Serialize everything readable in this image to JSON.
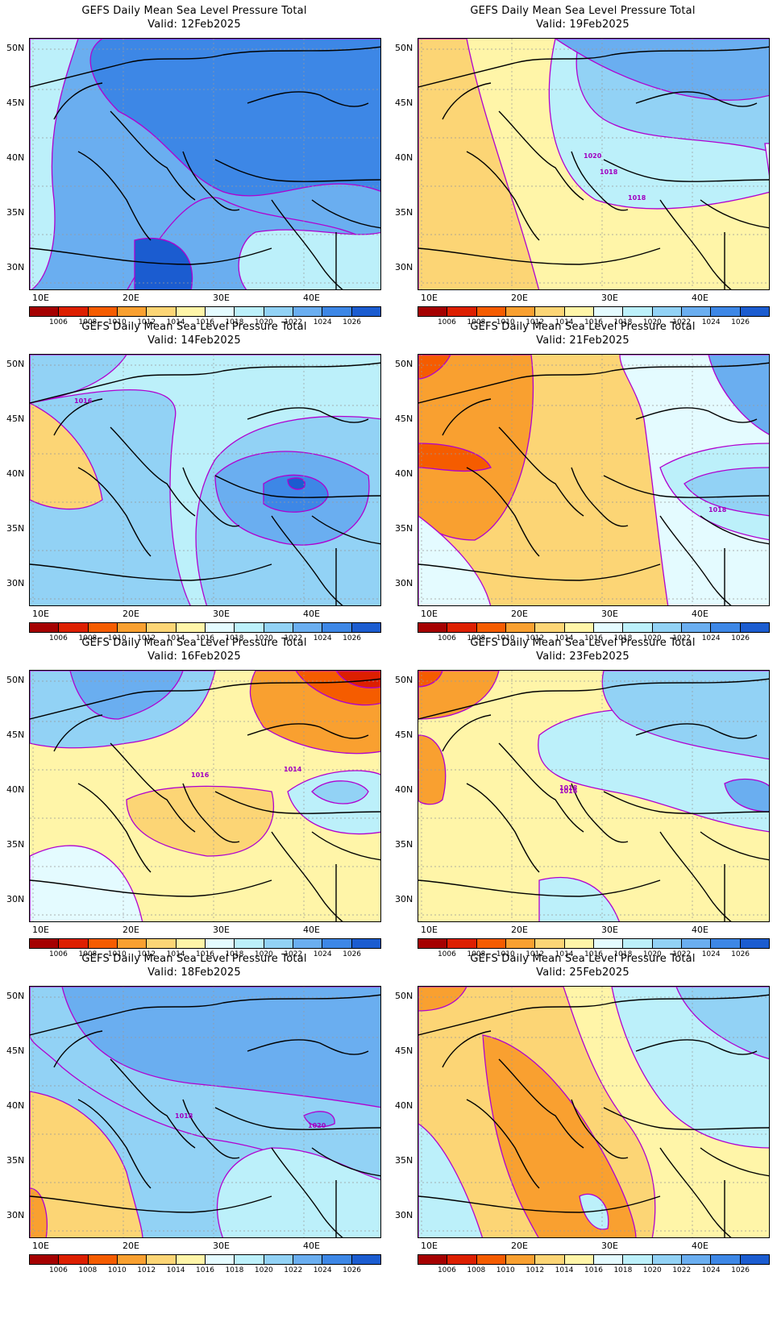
{
  "title": "GEFS Daily Mean Sea Level Pressure Total",
  "lat_labels": [
    "50N",
    "45N",
    "40N",
    "35N",
    "30N"
  ],
  "lon_labels": [
    "10E",
    "20E",
    "30E",
    "40E"
  ],
  "colorbar_labels": [
    "1006",
    "1008",
    "1010",
    "1012",
    "1014",
    "1016",
    "1018",
    "1020",
    "1022",
    "1024",
    "1026"
  ],
  "colorbar_colors": [
    "#a50000",
    "#dd1f00",
    "#f55c00",
    "#f9a030",
    "#fcd575",
    "#fff5a8",
    "#e4fbff",
    "#bcf0fa",
    "#92d2f5",
    "#6aaef0",
    "#3d87e6",
    "#1b5cd0"
  ],
  "panels": [
    {
      "valid": "Valid: 12Feb2025",
      "base": "#6aaef0",
      "contour_labels": []
    },
    {
      "valid": "Valid: 19Feb2025",
      "base": "#fff5a8",
      "contour_labels": [
        "1020",
        "1018",
        "1018"
      ]
    },
    {
      "valid": "Valid: 14Feb2025",
      "base": "#92d2f5",
      "contour_labels": [
        "1016"
      ]
    },
    {
      "valid": "Valid: 21Feb2025",
      "base": "#fcd575",
      "contour_labels": [
        "1018"
      ]
    },
    {
      "valid": "Valid: 16Feb2025",
      "base": "#fff5a8",
      "contour_labels": [
        "1016",
        "1014"
      ]
    },
    {
      "valid": "Valid: 23Feb2025",
      "base": "#fff5a8",
      "contour_labels": [
        "1018",
        "1016"
      ]
    },
    {
      "valid": "Valid: 18Feb2025",
      "base": "#92d2f5",
      "contour_labels": [
        "1018",
        "1020"
      ]
    },
    {
      "valid": "Valid: 25Feb2025",
      "base": "#fff5a8",
      "contour_labels": []
    }
  ]
}
